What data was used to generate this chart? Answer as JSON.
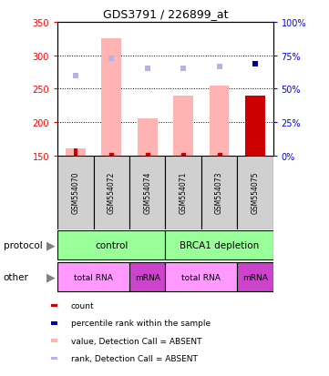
{
  "title": "GDS3791 / 226899_at",
  "samples": [
    "GSM554070",
    "GSM554072",
    "GSM554074",
    "GSM554071",
    "GSM554073",
    "GSM554075"
  ],
  "bar_values_absent": [
    160,
    325,
    205,
    240,
    255,
    240
  ],
  "bar_bottom": 150,
  "rank_values_absent": [
    270,
    295,
    280,
    280,
    283,
    287
  ],
  "ylim_left": [
    150,
    350
  ],
  "ylim_right": [
    0,
    100
  ],
  "yticks_left": [
    150,
    200,
    250,
    300,
    350
  ],
  "yticks_right": [
    0,
    25,
    50,
    75,
    100
  ],
  "color_bar_absent": "#ffb3b3",
  "color_rank_absent": "#b3b3e6",
  "color_count_red": "#cc0000",
  "color_rank_blue": "#000099",
  "protocol_color": "#99ff99",
  "other_color_light": "#ff99ff",
  "other_color_dark": "#cc44cc",
  "sample_box_color": "#d0d0d0",
  "background_color": "#ffffff",
  "grid_color": "#000000",
  "sample_count_values": [
    160,
    150,
    150,
    150,
    150,
    240
  ],
  "last_bar_is_red": true
}
